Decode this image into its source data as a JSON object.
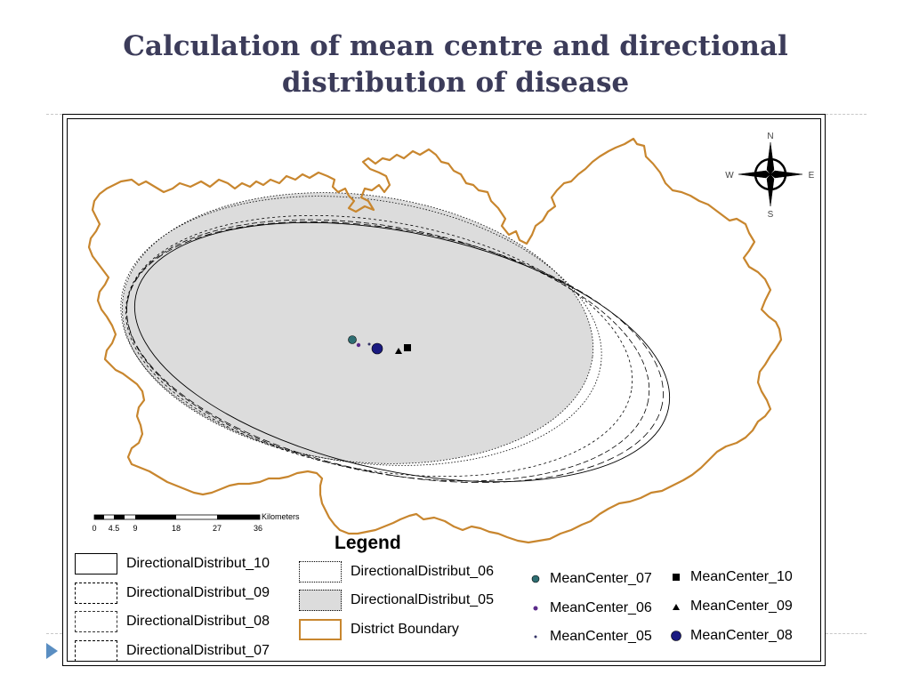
{
  "title": {
    "line1": "Calculation of mean centre and directional",
    "line2": "distribution of disease"
  },
  "compass": {
    "n": "N",
    "e": "E",
    "s": "S",
    "w": "W"
  },
  "scale_bar": {
    "unit": "Kilometers",
    "ticks": [
      "0",
      "4.5",
      "9",
      "18",
      "27",
      "36"
    ]
  },
  "legend": {
    "title": "Legend",
    "ellipses": [
      {
        "label": "DirectionalDistribut_10",
        "style": "solid"
      },
      {
        "label": "DirectionalDistribut_09",
        "style": "dashed"
      },
      {
        "label": "DirectionalDistribut_08",
        "style": "dashed"
      },
      {
        "label": "DirectionalDistribut_07",
        "style": "dashed"
      },
      {
        "label": "DirectionalDistribut_06",
        "style": "dotted"
      },
      {
        "label": "DirectionalDistribut_05",
        "style": "gray-fill"
      }
    ],
    "boundary": {
      "label": "District Boundary",
      "color": "#c8862e"
    },
    "mean_centers": [
      {
        "label": "MeanCenter_07",
        "symbol": "teal-circle",
        "color": "#2e6e72"
      },
      {
        "label": "MeanCenter_06",
        "symbol": "purple-dot",
        "color": "#5a2a8a"
      },
      {
        "label": "MeanCenter_05",
        "symbol": "small-dot",
        "color": "#333366"
      },
      {
        "label": "MeanCenter_10",
        "symbol": "black-square",
        "color": "#000000"
      },
      {
        "label": "MeanCenter_09",
        "symbol": "black-triangle",
        "color": "#000000"
      },
      {
        "label": "MeanCenter_08",
        "symbol": "navy-circle",
        "color": "#1a1a80"
      }
    ]
  },
  "colors": {
    "title": "#3c3c5a",
    "boundary": "#c8862e",
    "ellipse_fill": "#dcdcdc",
    "accent": "#5a8ec2"
  }
}
